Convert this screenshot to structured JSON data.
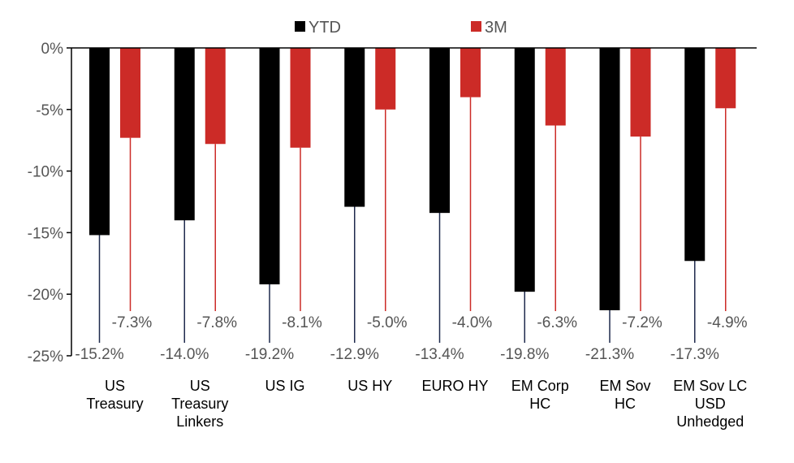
{
  "chart_data": {
    "type": "bar",
    "categories": [
      [
        "US",
        "Treasury"
      ],
      [
        "US",
        "Treasury",
        "Linkers"
      ],
      [
        "US IG"
      ],
      [
        "US HY"
      ],
      [
        "EURO HY"
      ],
      [
        "EM Corp",
        "HC"
      ],
      [
        "EM Sov",
        "HC"
      ],
      [
        "EM Sov LC",
        "USD",
        "Unhedged"
      ]
    ],
    "series": [
      {
        "name": "YTD",
        "color": "#000000",
        "values": [
          -15.2,
          -14.0,
          -19.2,
          -12.9,
          -13.4,
          -19.8,
          -21.3,
          -17.3
        ],
        "labels": [
          "-15.2%",
          "-14.0%",
          "-19.2%",
          "-12.9%",
          "-13.4%",
          "-19.8%",
          "-21.3%",
          "-17.3%"
        ]
      },
      {
        "name": "3M",
        "color": "#cc2b27",
        "values": [
          -7.3,
          -7.8,
          -8.1,
          -5.0,
          -4.0,
          -6.3,
          -7.2,
          -4.9
        ],
        "labels": [
          "-7.3%",
          "-7.8%",
          "-8.1%",
          "-5.0%",
          "-4.0%",
          "-6.3%",
          "-7.2%",
          "-4.9%"
        ]
      }
    ],
    "ylim": [
      -25,
      0
    ],
    "yticks": [
      0,
      -5,
      -10,
      -15,
      -20,
      -25
    ],
    "ytick_labels": [
      "0%",
      "-5%",
      "-10%",
      "-15%",
      "-20%",
      "-25%"
    ],
    "legend": "top-center",
    "grid": false,
    "leader_line_color": "#1f2a4d"
  }
}
